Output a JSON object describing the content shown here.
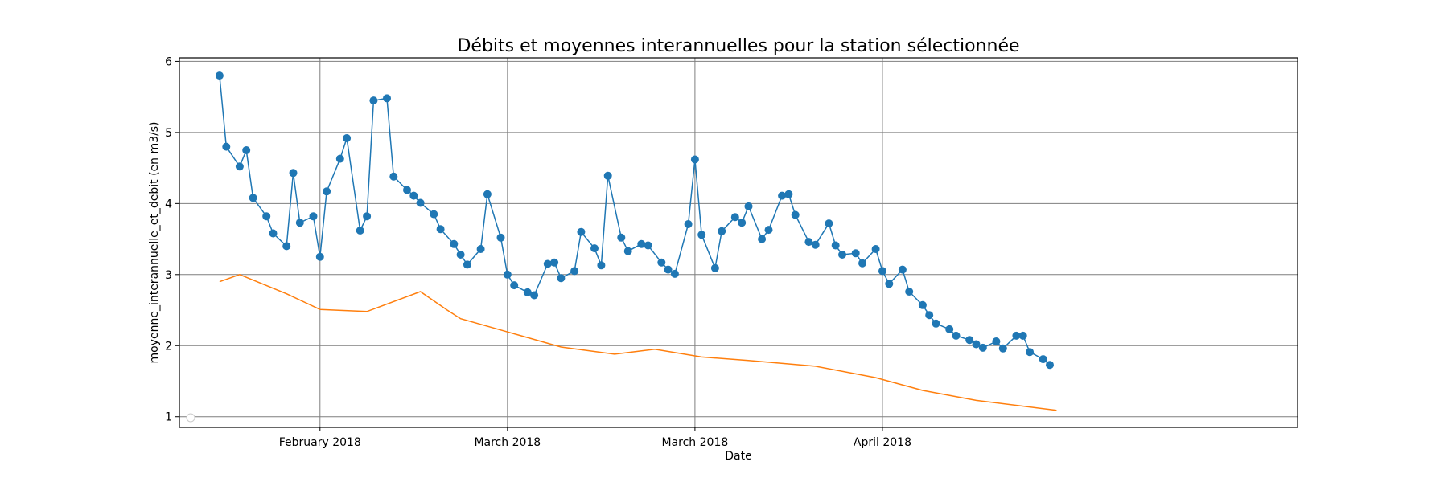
{
  "chart_data": {
    "type": "line",
    "title": "Débits et moyennes interannuelles pour la station sélectionnée",
    "xlabel": "Date",
    "ylabel": "moyenne_interannuelle_et_debit (en m3/s)",
    "ylim": [
      0.85,
      6.05
    ],
    "y_ticks": [
      1,
      2,
      3,
      4,
      5,
      6
    ],
    "x_ticks": [
      {
        "x": "2018-02-01",
        "label": "February 2018"
      },
      {
        "x": "2018-03-01",
        "label": "March 2018"
      },
      {
        "x": "2018-03-29",
        "label": "March 2018"
      },
      {
        "x": "2018-04-26",
        "label": "April 2018"
      }
    ],
    "xlim": [
      "2018-01-11",
      "2018-06-27"
    ],
    "grid": true,
    "legend": "lower-left, empty",
    "series": [
      {
        "color": "#1f77b4",
        "marker": "circle",
        "x": [
          "2018-01-17",
          "2018-01-18",
          "2018-01-20",
          "2018-01-21",
          "2018-01-22",
          "2018-01-24",
          "2018-01-25",
          "2018-01-27",
          "2018-01-28",
          "2018-01-29",
          "2018-01-31",
          "2018-02-01",
          "2018-02-02",
          "2018-02-04",
          "2018-02-05",
          "2018-02-07",
          "2018-02-08",
          "2018-02-09",
          "2018-02-11",
          "2018-02-12",
          "2018-02-14",
          "2018-02-15",
          "2018-02-16",
          "2018-02-18",
          "2018-02-19",
          "2018-02-21",
          "2018-02-22",
          "2018-02-23",
          "2018-02-25",
          "2018-02-26",
          "2018-02-28",
          "2018-03-01",
          "2018-03-02",
          "2018-03-04",
          "2018-03-05",
          "2018-03-07",
          "2018-03-08",
          "2018-03-09",
          "2018-03-11",
          "2018-03-12",
          "2018-03-14",
          "2018-03-15",
          "2018-03-16",
          "2018-03-18",
          "2018-03-19",
          "2018-03-21",
          "2018-03-22",
          "2018-03-24",
          "2018-03-25",
          "2018-03-26",
          "2018-03-28",
          "2018-03-29",
          "2018-03-30",
          "2018-04-01",
          "2018-04-02",
          "2018-04-04",
          "2018-04-05",
          "2018-04-06",
          "2018-04-08",
          "2018-04-09",
          "2018-04-11",
          "2018-04-12",
          "2018-04-13",
          "2018-04-15",
          "2018-04-16",
          "2018-04-18",
          "2018-04-19",
          "2018-04-20",
          "2018-04-22",
          "2018-04-23",
          "2018-04-25",
          "2018-04-26",
          "2018-04-27",
          "2018-04-29",
          "2018-04-30",
          "2018-05-02",
          "2018-05-03",
          "2018-05-04",
          "2018-05-06",
          "2018-05-07",
          "2018-05-09",
          "2018-05-10",
          "2018-05-11",
          "2018-05-13",
          "2018-05-14",
          "2018-05-16",
          "2018-05-17",
          "2018-05-18",
          "2018-05-20",
          "2018-05-21"
        ],
        "values": [
          5.8,
          4.8,
          4.52,
          4.75,
          4.08,
          3.82,
          3.58,
          3.4,
          4.43,
          3.73,
          3.82,
          3.25,
          4.17,
          4.63,
          4.92,
          3.62,
          3.82,
          5.45,
          5.48,
          4.38,
          4.19,
          4.11,
          4.01,
          3.85,
          3.64,
          3.43,
          3.28,
          3.14,
          3.36,
          4.13,
          3.52,
          3.0,
          2.85,
          2.75,
          2.71,
          3.15,
          3.17,
          2.95,
          3.05,
          3.6,
          3.37,
          3.13,
          4.39,
          3.52,
          3.33,
          3.43,
          3.41,
          3.17,
          3.07,
          3.01,
          3.71,
          4.62,
          3.56,
          3.09,
          3.61,
          3.81,
          3.73,
          3.96,
          3.5,
          3.63,
          4.11,
          4.13,
          3.84,
          3.46,
          3.42,
          3.72,
          3.41,
          3.28,
          3.3,
          3.16,
          3.36,
          3.05,
          2.87,
          3.07,
          2.76,
          2.57,
          2.43,
          2.31,
          2.23,
          2.14,
          2.08,
          2.02,
          1.97,
          2.06,
          1.96,
          2.14,
          2.14,
          1.91,
          1.81,
          1.73
        ]
      },
      {
        "color": "#ff7f0e",
        "marker": "none",
        "x": [
          "2018-01-17",
          "2018-01-20",
          "2018-01-27",
          "2018-02-01",
          "2018-02-08",
          "2018-02-16",
          "2018-02-20",
          "2018-02-22",
          "2018-03-03",
          "2018-03-09",
          "2018-03-17",
          "2018-03-23",
          "2018-03-30",
          "2018-04-06",
          "2018-04-16",
          "2018-04-25",
          "2018-05-02",
          "2018-05-10",
          "2018-05-22"
        ],
        "values": [
          2.9,
          3.0,
          2.73,
          2.51,
          2.48,
          2.76,
          2.5,
          2.38,
          2.14,
          1.98,
          1.88,
          1.95,
          1.84,
          1.79,
          1.71,
          1.55,
          1.37,
          1.23,
          1.09
        ]
      }
    ]
  }
}
